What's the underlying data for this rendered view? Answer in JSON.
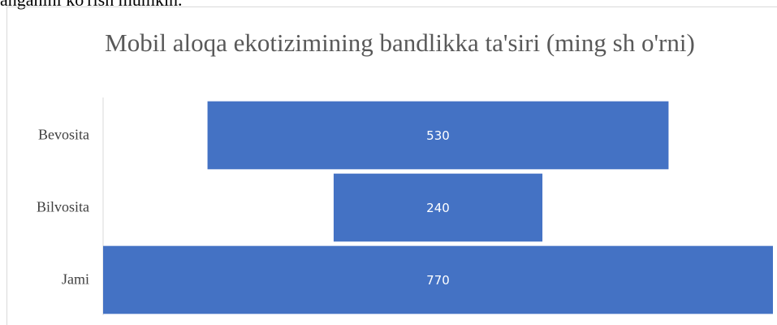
{
  "page_text": "anganini ko'rish mumkin.",
  "chart_data": {
    "type": "funnel",
    "title": "Mobil aloqa ekotizimining bandlikka ta'siri (ming sh o'rni)",
    "categories": [
      "Bevosita",
      "Bilvosita",
      "Jami"
    ],
    "values": [
      530,
      240,
      770
    ],
    "color": "#4472c4"
  }
}
